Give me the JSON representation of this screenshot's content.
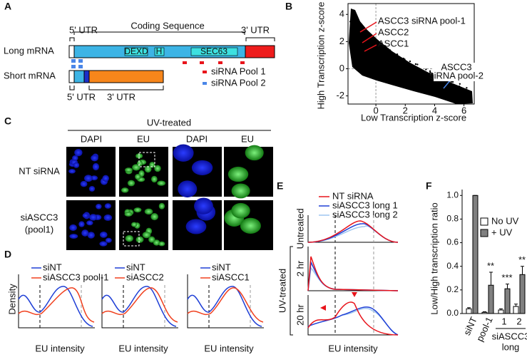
{
  "panel_a": {
    "label": "A",
    "long": "Long mRNA",
    "short": "Short mRNA",
    "utr5": "5' UTR",
    "cds": "Coding Sequence",
    "utr3": "3' UTR",
    "domains": [
      "DEXD",
      "H",
      "SEC63"
    ],
    "short_utr5": "5' UTR",
    "short_utr3": "3' UTR",
    "legend": [
      "siRNA Pool 1",
      "siRNA Pool 2"
    ]
  },
  "panel_b": {
    "label": "B",
    "xlabel": "Low Transcription z-score",
    "ylabel": "High Transcription z-score",
    "xlim": [
      -1.9,
      6.7
    ],
    "ylim": [
      -2.6,
      4.8
    ],
    "xticks": [
      0,
      2,
      4,
      6
    ],
    "yticks": [
      4,
      2,
      0,
      -2
    ],
    "annotations": [
      "ASCC3 siRNA pool-1",
      "ASCC2",
      "ASCC1",
      "ASCC3",
      "siRNA pool-2"
    ]
  },
  "panel_c": {
    "label": "C",
    "title": "UV-treated",
    "columns": [
      "DAPI",
      "EU",
      "DAPI",
      "EU"
    ],
    "rows": [
      "NT siRNA",
      "siASCC3",
      "(pool1)"
    ]
  },
  "panel_d": {
    "label": "D",
    "ylabel": "Density",
    "xlabel": "EU intensity",
    "legends": [
      [
        "siNT",
        "siASCC3 pool-1"
      ],
      [
        "siNT",
        "siASCC2"
      ],
      [
        "siNT",
        "siASCC1"
      ]
    ]
  },
  "panel_e": {
    "label": "E",
    "legend": [
      "NT siRNA",
      "siASCC3 long 1",
      "siASCC3 long 2"
    ],
    "rows": [
      "Untreated",
      "2 hr",
      "20 hr"
    ],
    "group": "UV-treated",
    "xlabel": "EU intensity"
  },
  "chart_data": {
    "type": "bar",
    "label": "F",
    "ylabel": "Low/High transcription ratio",
    "categories": [
      "siNT",
      "pool-1",
      "1",
      "2"
    ],
    "group_label": [
      "siASCC3",
      "long"
    ],
    "ylim": [
      0,
      1.05
    ],
    "yticks": [
      {
        "value": 0,
        "label": "0.0"
      },
      {
        "value": 0.2,
        "label": "0.2"
      },
      {
        "value": 0.4,
        "label": "0.4"
      },
      {
        "value": 0.6,
        "label": "0.6"
      },
      {
        "value": 0.8,
        "label": "0.8"
      },
      {
        "value": 1,
        "label": "1.0"
      }
    ],
    "series": [
      {
        "name": "No UV",
        "color": "#ffffff",
        "values": [
          0.04,
          0.01,
          0.03,
          0.06
        ],
        "errors": [
          0.01,
          0.005,
          0.01,
          0.02
        ]
      },
      {
        "name": "+ UV",
        "color": "#808080",
        "values": [
          1.0,
          0.24,
          0.21,
          0.33
        ],
        "errors": [
          0,
          0.11,
          0.04,
          0.07
        ]
      }
    ],
    "significance": [
      null,
      "**",
      "***",
      "**"
    ]
  }
}
